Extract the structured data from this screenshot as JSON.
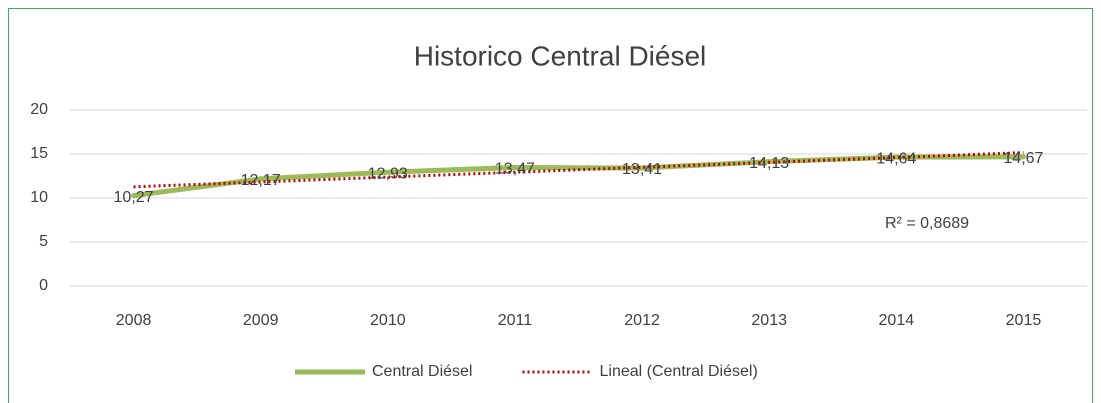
{
  "chart_data": {
    "type": "line",
    "title": "Historico Central Diésel",
    "categories": [
      "2008",
      "2009",
      "2010",
      "2011",
      "2012",
      "2013",
      "2014",
      "2015"
    ],
    "series": [
      {
        "name": "Central Diésel",
        "color": "#9bbb59",
        "values": [
          10.27,
          12.17,
          12.93,
          13.47,
          13.41,
          14.13,
          14.64,
          14.67
        ],
        "value_labels": [
          "10,27",
          "12,17",
          "12,93",
          "13,47",
          "13,41",
          "14,13",
          "14,64",
          "14,67"
        ]
      },
      {
        "name": "Lineal (Central Diésel)",
        "color": "#c00000",
        "dash": "dotted",
        "values": [
          11.27,
          11.82,
          12.38,
          12.93,
          13.49,
          14.05,
          14.6,
          15.16
        ]
      }
    ],
    "annotations": [
      "R² = 0,8689"
    ],
    "ylim": [
      0,
      20
    ],
    "yticks": [
      0,
      5,
      10,
      15,
      20
    ],
    "grid": true,
    "legend": "bottom"
  }
}
